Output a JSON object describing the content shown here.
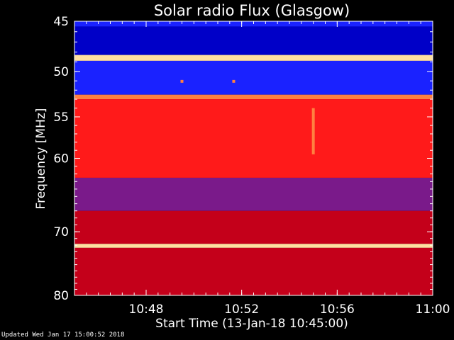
{
  "chart_data": {
    "type": "heatmap",
    "title": "Solar radio Flux (Glasgow)",
    "xlabel": "Start Time (13-Jan-18 10:45:00)",
    "ylabel": "Frequency [MHz]",
    "x_unit": "time",
    "x_range": [
      "10:45:00",
      "11:00:00"
    ],
    "y_range": [
      45,
      80
    ],
    "y_reversed": true,
    "y_scale": "log",
    "x_ticks": [
      "10:48",
      "10:52",
      "10:56",
      "11:00"
    ],
    "y_ticks": [
      45,
      50,
      55,
      60,
      70,
      80
    ],
    "colormap": [
      "#00003a",
      "#0000c8",
      "#1a22ff",
      "#7a1a8a",
      "#c4001a",
      "#ff1a1a",
      "#ff8040",
      "#ffe0a0"
    ],
    "bands": [
      {
        "from_mhz": 45.0,
        "to_mhz": 45.5,
        "intensity": 0.35
      },
      {
        "from_mhz": 45.5,
        "to_mhz": 48.3,
        "intensity": 0.12
      },
      {
        "from_mhz": 48.3,
        "to_mhz": 48.9,
        "intensity": 0.95
      },
      {
        "from_mhz": 48.9,
        "to_mhz": 52.5,
        "intensity": 0.22
      },
      {
        "from_mhz": 52.5,
        "to_mhz": 53.0,
        "intensity": 0.9
      },
      {
        "from_mhz": 53.0,
        "to_mhz": 62.5,
        "intensity": 0.68
      },
      {
        "from_mhz": 62.5,
        "to_mhz": 67.0,
        "intensity": 0.45
      },
      {
        "from_mhz": 67.0,
        "to_mhz": 71.8,
        "intensity": 0.5
      },
      {
        "from_mhz": 71.8,
        "to_mhz": 72.4,
        "intensity": 0.95
      },
      {
        "from_mhz": 72.4,
        "to_mhz": 80.0,
        "intensity": 0.58
      }
    ],
    "events": [
      {
        "time": "10:49:30",
        "from_mhz": 50.9,
        "to_mhz": 51.2,
        "intensity": 0.8
      },
      {
        "time": "10:51:40",
        "from_mhz": 50.9,
        "to_mhz": 51.2,
        "intensity": 0.8
      },
      {
        "time": "10:55:00",
        "from_mhz": 54.0,
        "to_mhz": 59.5,
        "intensity": 0.85
      }
    ]
  },
  "footer": "Updated Wed Jan 17 15:00:52 2018"
}
